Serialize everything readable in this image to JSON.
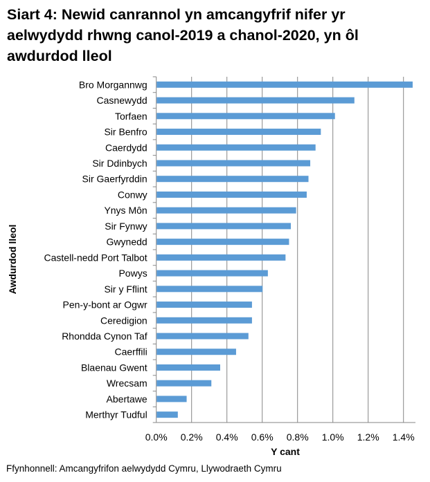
{
  "chart_data": {
    "type": "bar",
    "orientation": "horizontal",
    "title": "Siart 4: Newid canrannol yn amcangyfrif nifer yr aelwydydd rhwng canol-2019 a chanol-2020, yn ôl awdurdod lleol",
    "xlabel": "Y cant",
    "ylabel": "Awdurdod lleol",
    "categories": [
      "Bro Morgannwg",
      "Casnewydd",
      "Torfaen",
      "Sir Benfro",
      "Caerdydd",
      "Sir Ddinbych",
      "Sir Gaerfyrddin",
      "Conwy",
      "Ynys Môn",
      "Sir Fynwy",
      "Gwynedd",
      "Castell-nedd Port Talbot",
      "Powys",
      "Sir y Fflint",
      "Pen-y-bont ar Ogwr",
      "Ceredigion",
      "Rhondda Cynon Taf",
      "Caerffili",
      "Blaenau Gwent",
      "Wrecsam",
      "Abertawe",
      "Merthyr Tudful"
    ],
    "values": [
      1.45,
      1.12,
      1.01,
      0.93,
      0.9,
      0.87,
      0.86,
      0.85,
      0.79,
      0.76,
      0.75,
      0.73,
      0.63,
      0.6,
      0.54,
      0.54,
      0.52,
      0.45,
      0.36,
      0.31,
      0.17,
      0.12
    ],
    "unit": "%",
    "xlim": [
      0,
      1.4
    ],
    "xticks": [
      "0.0%",
      "0.2%",
      "0.4%",
      "0.6%",
      "0.8%",
      "1.0%",
      "1.2%",
      "1.4%"
    ],
    "grid": true,
    "bar_color": "#5b9bd5",
    "grid_color": "#868686"
  },
  "source": "Ffynhonnell: Amcangyfrifon aelwydydd Cymru, Llywodraeth Cymru"
}
